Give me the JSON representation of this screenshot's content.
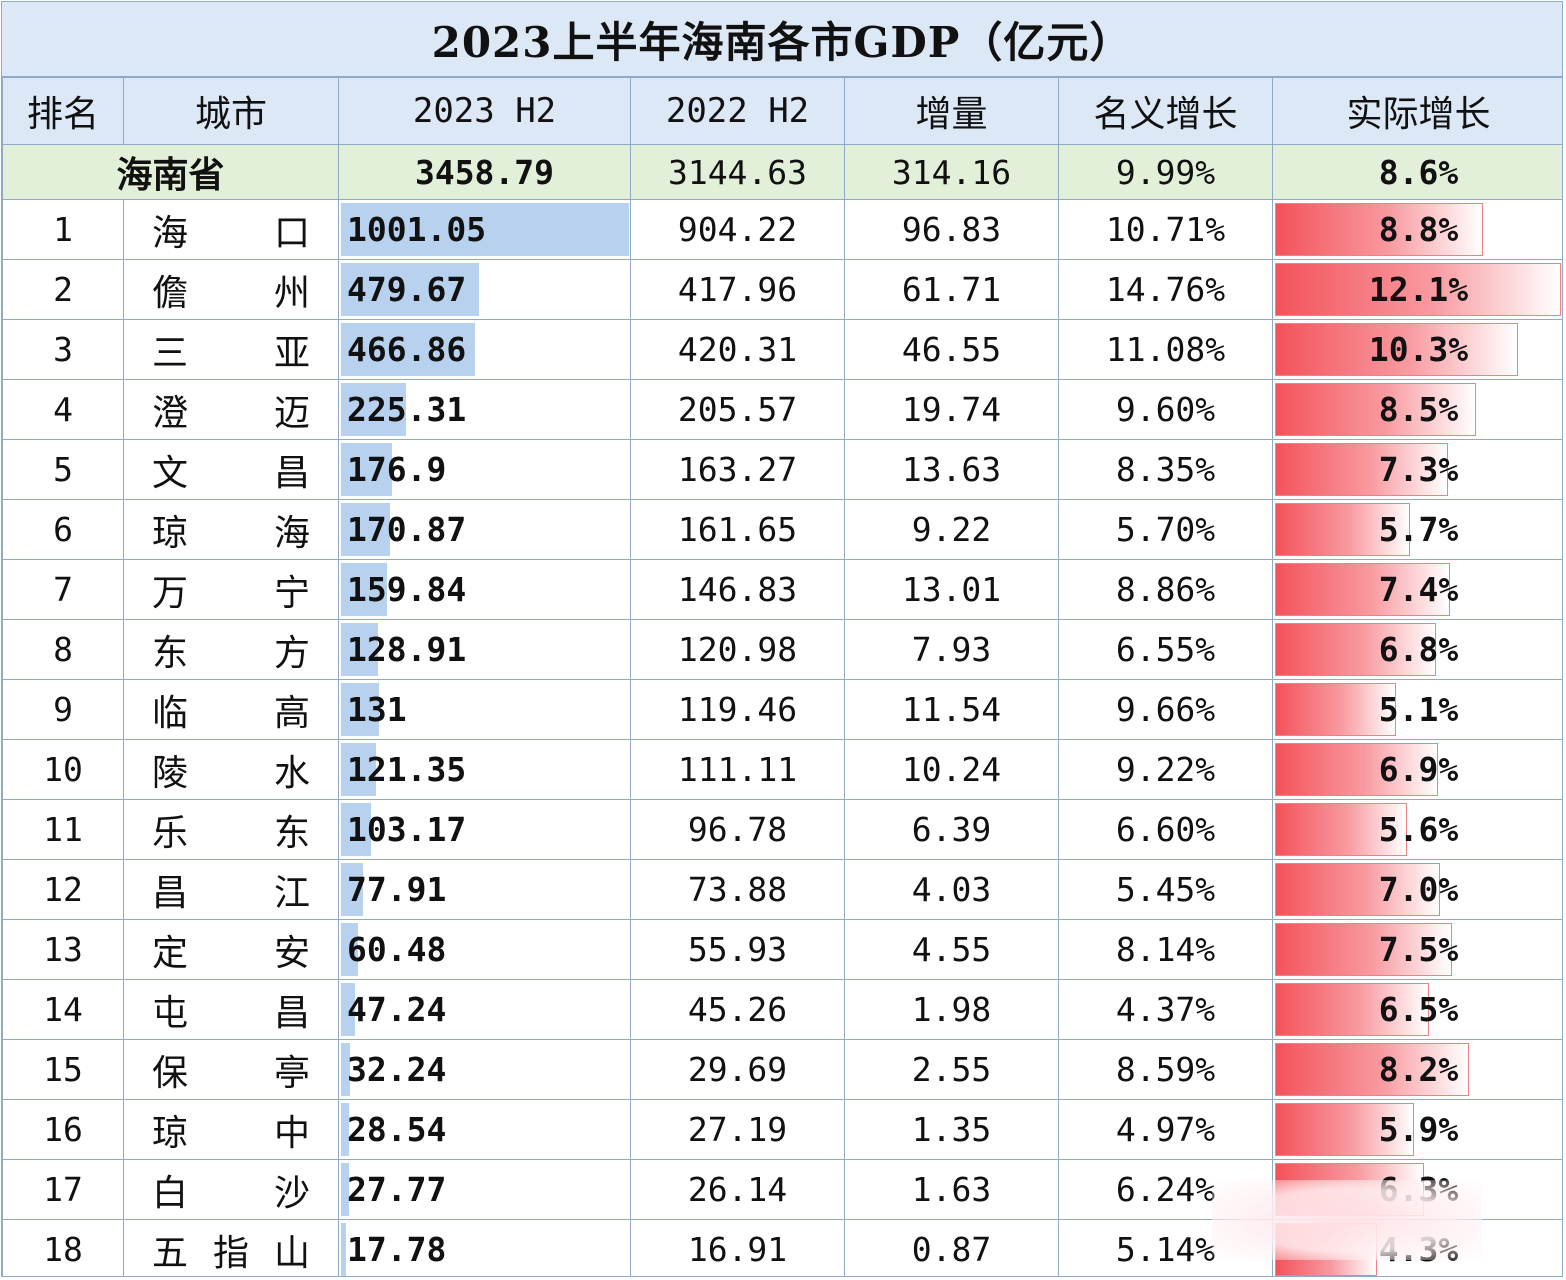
{
  "chart_data": {
    "type": "table",
    "title": "2023上半年海南各市GDP（亿元）",
    "columns": [
      "排名",
      "城市",
      "2023 H2",
      "2022 H2",
      "增量",
      "名义增长",
      "实际增长"
    ],
    "province": {
      "name": "海南省",
      "gdp_2023": "3458.79",
      "gdp_2022": "3144.63",
      "increase": "314.16",
      "nominal": "9.99%",
      "real": "8.6%"
    },
    "rows": [
      {
        "rank": "1",
        "city": [
          "海",
          "口"
        ],
        "gdp_2023": "1001.05",
        "gdp_2022": "904.22",
        "increase": "96.83",
        "nominal": "10.71%",
        "real": "8.8%"
      },
      {
        "rank": "2",
        "city": [
          "儋",
          "州"
        ],
        "gdp_2023": "479.67",
        "gdp_2022": "417.96",
        "increase": "61.71",
        "nominal": "14.76%",
        "real": "12.1%"
      },
      {
        "rank": "3",
        "city": [
          "三",
          "亚"
        ],
        "gdp_2023": "466.86",
        "gdp_2022": "420.31",
        "increase": "46.55",
        "nominal": "11.08%",
        "real": "10.3%"
      },
      {
        "rank": "4",
        "city": [
          "澄",
          "迈"
        ],
        "gdp_2023": "225.31",
        "gdp_2022": "205.57",
        "increase": "19.74",
        "nominal": "9.60%",
        "real": "8.5%"
      },
      {
        "rank": "5",
        "city": [
          "文",
          "昌"
        ],
        "gdp_2023": "176.9",
        "gdp_2022": "163.27",
        "increase": "13.63",
        "nominal": "8.35%",
        "real": "7.3%"
      },
      {
        "rank": "6",
        "city": [
          "琼",
          "海"
        ],
        "gdp_2023": "170.87",
        "gdp_2022": "161.65",
        "increase": "9.22",
        "nominal": "5.70%",
        "real": "5.7%"
      },
      {
        "rank": "7",
        "city": [
          "万",
          "宁"
        ],
        "gdp_2023": "159.84",
        "gdp_2022": "146.83",
        "increase": "13.01",
        "nominal": "8.86%",
        "real": "7.4%"
      },
      {
        "rank": "8",
        "city": [
          "东",
          "方"
        ],
        "gdp_2023": "128.91",
        "gdp_2022": "120.98",
        "increase": "7.93",
        "nominal": "6.55%",
        "real": "6.8%"
      },
      {
        "rank": "9",
        "city": [
          "临",
          "高"
        ],
        "gdp_2023": "131",
        "gdp_2022": "119.46",
        "increase": "11.54",
        "nominal": "9.66%",
        "real": "5.1%"
      },
      {
        "rank": "10",
        "city": [
          "陵",
          "水"
        ],
        "gdp_2023": "121.35",
        "gdp_2022": "111.11",
        "increase": "10.24",
        "nominal": "9.22%",
        "real": "6.9%"
      },
      {
        "rank": "11",
        "city": [
          "乐",
          "东"
        ],
        "gdp_2023": "103.17",
        "gdp_2022": "96.78",
        "increase": "6.39",
        "nominal": "6.60%",
        "real": "5.6%"
      },
      {
        "rank": "12",
        "city": [
          "昌",
          "江"
        ],
        "gdp_2023": "77.91",
        "gdp_2022": "73.88",
        "increase": "4.03",
        "nominal": "5.45%",
        "real": "7.0%"
      },
      {
        "rank": "13",
        "city": [
          "定",
          "安"
        ],
        "gdp_2023": "60.48",
        "gdp_2022": "55.93",
        "increase": "4.55",
        "nominal": "8.14%",
        "real": "7.5%"
      },
      {
        "rank": "14",
        "city": [
          "屯",
          "昌"
        ],
        "gdp_2023": "47.24",
        "gdp_2022": "45.26",
        "increase": "1.98",
        "nominal": "4.37%",
        "real": "6.5%"
      },
      {
        "rank": "15",
        "city": [
          "保",
          "亭"
        ],
        "gdp_2023": "32.24",
        "gdp_2022": "29.69",
        "increase": "2.55",
        "nominal": "8.59%",
        "real": "8.2%"
      },
      {
        "rank": "16",
        "city": [
          "琼",
          "中"
        ],
        "gdp_2023": "28.54",
        "gdp_2022": "27.19",
        "increase": "1.35",
        "nominal": "4.97%",
        "real": "5.9%"
      },
      {
        "rank": "17",
        "city": [
          "白",
          "沙"
        ],
        "gdp_2023": "27.77",
        "gdp_2022": "26.14",
        "increase": "1.63",
        "nominal": "6.24%",
        "real": "6.3%"
      },
      {
        "rank": "18",
        "city": [
          "五",
          "指",
          "山"
        ],
        "gdp_2023": "17.78",
        "gdp_2022": "16.91",
        "increase": "0.87",
        "nominal": "5.14%",
        "real": "4.3%"
      }
    ],
    "colors": {
      "header_bg": "#dde8f6",
      "province_bg": "#e3f0d9",
      "gdp_bar": "#b8d1ee",
      "real_bar": "#f4525a",
      "border": "#8fa9c9"
    }
  }
}
